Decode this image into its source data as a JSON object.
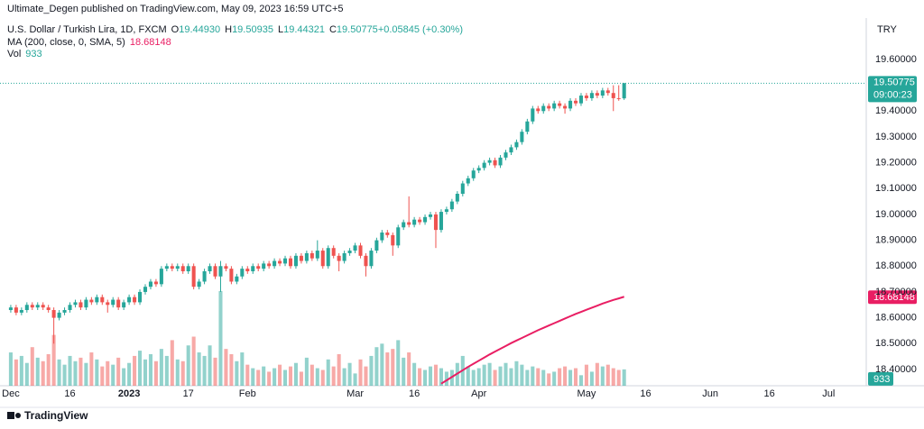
{
  "header": "Ultimate_Degen published on TradingView.com, May 09, 2023 16:59 UTC+5",
  "footer": "TradingView",
  "chart_data": {
    "type": "candlestick",
    "title": "U.S. Dollar / Turkish Lira, 1D, FXCM",
    "ohlc_legend": [
      "O",
      "19.44930",
      "H",
      "19.50935",
      "L",
      "19.44321",
      "C",
      "19.50775",
      "+0.05845 (+0.30%)"
    ],
    "currency": "TRY",
    "up_color": "#26a69a",
    "down_color": "#ef5350",
    "candles": [
      [
        18.63,
        18.65,
        18.62,
        18.64
      ],
      [
        18.64,
        18.65,
        18.61,
        18.62
      ],
      [
        18.62,
        18.64,
        18.61,
        18.63
      ],
      [
        18.63,
        18.66,
        18.62,
        18.65
      ],
      [
        18.65,
        18.66,
        18.63,
        18.64
      ],
      [
        18.64,
        18.66,
        18.63,
        18.65
      ],
      [
        18.65,
        18.66,
        18.63,
        18.64
      ],
      [
        18.64,
        18.65,
        18.62,
        18.63
      ],
      [
        18.63,
        18.64,
        18.5,
        18.6
      ],
      [
        18.6,
        18.63,
        18.59,
        18.62
      ],
      [
        18.62,
        18.64,
        18.61,
        18.63
      ],
      [
        18.63,
        18.66,
        18.62,
        18.65
      ],
      [
        18.65,
        18.67,
        18.64,
        18.66
      ],
      [
        18.66,
        18.67,
        18.63,
        18.64
      ],
      [
        18.64,
        18.68,
        18.63,
        18.67
      ],
      [
        18.67,
        18.68,
        18.65,
        18.66
      ],
      [
        18.66,
        18.69,
        18.65,
        18.68
      ],
      [
        18.68,
        18.69,
        18.65,
        18.66
      ],
      [
        18.66,
        18.67,
        18.62,
        18.65
      ],
      [
        18.65,
        18.68,
        18.64,
        18.67
      ],
      [
        18.67,
        18.68,
        18.63,
        18.64
      ],
      [
        18.64,
        18.67,
        18.63,
        18.66
      ],
      [
        18.66,
        18.69,
        18.65,
        18.68
      ],
      [
        18.68,
        18.69,
        18.65,
        18.66
      ],
      [
        18.66,
        18.71,
        18.65,
        18.7
      ],
      [
        18.7,
        18.73,
        18.69,
        18.72
      ],
      [
        18.72,
        18.75,
        18.71,
        18.74
      ],
      [
        18.74,
        18.75,
        18.72,
        18.73
      ],
      [
        18.73,
        18.8,
        18.72,
        18.79
      ],
      [
        18.79,
        18.81,
        18.78,
        18.8
      ],
      [
        18.8,
        18.81,
        18.78,
        18.79
      ],
      [
        18.79,
        18.81,
        18.78,
        18.8
      ],
      [
        18.8,
        18.81,
        18.77,
        18.78
      ],
      [
        18.78,
        18.81,
        18.77,
        18.8
      ],
      [
        18.8,
        18.81,
        18.71,
        18.72
      ],
      [
        18.72,
        18.75,
        18.71,
        18.74
      ],
      [
        18.74,
        18.79,
        18.73,
        18.78
      ],
      [
        18.78,
        18.81,
        18.77,
        18.8
      ],
      [
        18.8,
        18.81,
        18.75,
        18.76
      ],
      [
        18.76,
        18.82,
        18.7,
        18.8
      ],
      [
        18.8,
        18.81,
        18.78,
        18.79
      ],
      [
        18.79,
        18.8,
        18.73,
        18.74
      ],
      [
        18.74,
        18.77,
        18.73,
        18.76
      ],
      [
        18.76,
        18.8,
        18.75,
        18.79
      ],
      [
        18.79,
        18.8,
        18.77,
        18.78
      ],
      [
        18.78,
        18.81,
        18.77,
        18.8
      ],
      [
        18.8,
        18.81,
        18.78,
        18.79
      ],
      [
        18.79,
        18.82,
        18.78,
        18.81
      ],
      [
        18.81,
        18.82,
        18.79,
        18.8
      ],
      [
        18.8,
        18.83,
        18.79,
        18.82
      ],
      [
        18.82,
        18.83,
        18.8,
        18.81
      ],
      [
        18.81,
        18.84,
        18.8,
        18.83
      ],
      [
        18.83,
        18.84,
        18.79,
        18.8
      ],
      [
        18.8,
        18.85,
        18.79,
        18.84
      ],
      [
        18.84,
        18.85,
        18.81,
        18.82
      ],
      [
        18.82,
        18.86,
        18.81,
        18.85
      ],
      [
        18.85,
        18.86,
        18.82,
        18.83
      ],
      [
        18.83,
        18.9,
        18.82,
        18.86
      ],
      [
        18.86,
        18.87,
        18.79,
        18.8
      ],
      [
        18.8,
        18.88,
        18.79,
        18.87
      ],
      [
        18.87,
        18.88,
        18.83,
        18.84
      ],
      [
        18.84,
        18.85,
        18.78,
        18.82
      ],
      [
        18.82,
        18.86,
        18.81,
        18.85
      ],
      [
        18.85,
        18.87,
        18.84,
        18.86
      ],
      [
        18.86,
        18.89,
        18.85,
        18.88
      ],
      [
        18.88,
        18.89,
        18.83,
        18.84
      ],
      [
        18.84,
        18.85,
        18.76,
        18.8
      ],
      [
        18.8,
        18.87,
        18.79,
        18.86
      ],
      [
        18.86,
        18.91,
        18.85,
        18.9
      ],
      [
        18.9,
        18.94,
        18.89,
        18.93
      ],
      [
        18.93,
        18.94,
        18.91,
        18.92
      ],
      [
        18.92,
        18.93,
        18.84,
        18.88
      ],
      [
        18.88,
        18.96,
        18.87,
        18.95
      ],
      [
        18.95,
        18.98,
        18.94,
        18.97
      ],
      [
        18.97,
        19.07,
        18.95,
        18.96
      ],
      [
        18.96,
        18.99,
        18.95,
        18.98
      ],
      [
        18.98,
        18.99,
        18.96,
        18.97
      ],
      [
        18.97,
        19.0,
        18.96,
        18.99
      ],
      [
        18.99,
        19.01,
        18.98,
        19.0
      ],
      [
        19.0,
        19.01,
        18.87,
        18.94
      ],
      [
        18.94,
        19.02,
        18.93,
        19.01
      ],
      [
        19.01,
        19.03,
        19.0,
        19.02
      ],
      [
        19.02,
        19.06,
        19.01,
        19.05
      ],
      [
        19.05,
        19.09,
        19.04,
        19.08
      ],
      [
        19.08,
        19.13,
        19.07,
        19.12
      ],
      [
        19.12,
        19.15,
        19.11,
        19.14
      ],
      [
        19.14,
        19.18,
        19.13,
        19.17
      ],
      [
        19.17,
        19.19,
        19.16,
        19.18
      ],
      [
        19.18,
        19.21,
        19.17,
        19.2
      ],
      [
        19.2,
        19.22,
        19.19,
        19.21
      ],
      [
        19.21,
        19.22,
        19.18,
        19.19
      ],
      [
        19.19,
        19.23,
        19.18,
        19.22
      ],
      [
        19.22,
        19.25,
        19.21,
        19.24
      ],
      [
        19.24,
        19.27,
        19.23,
        19.26
      ],
      [
        19.26,
        19.29,
        19.25,
        19.28
      ],
      [
        19.28,
        19.33,
        19.27,
        19.32
      ],
      [
        19.32,
        19.37,
        19.31,
        19.36
      ],
      [
        19.36,
        19.42,
        19.35,
        19.41
      ],
      [
        19.41,
        19.42,
        19.39,
        19.4
      ],
      [
        19.4,
        19.43,
        19.39,
        19.42
      ],
      [
        19.42,
        19.43,
        19.4,
        19.41
      ],
      [
        19.41,
        19.44,
        19.4,
        19.43
      ],
      [
        19.43,
        19.44,
        19.41,
        19.42
      ],
      [
        19.42,
        19.43,
        19.39,
        19.41
      ],
      [
        19.41,
        19.45,
        19.4,
        19.44
      ],
      [
        19.44,
        19.45,
        19.42,
        19.43
      ],
      [
        19.43,
        19.47,
        19.42,
        19.46
      ],
      [
        19.46,
        19.47,
        19.44,
        19.45
      ],
      [
        19.45,
        19.48,
        19.44,
        19.47
      ],
      [
        19.47,
        19.48,
        19.45,
        19.46
      ],
      [
        19.46,
        19.49,
        19.45,
        19.48
      ],
      [
        19.48,
        19.49,
        19.46,
        19.47
      ],
      [
        19.47,
        19.5,
        19.4,
        19.45
      ],
      [
        19.45,
        19.5,
        19.44,
        19.4493
      ],
      [
        19.4493,
        19.50935,
        19.44321,
        19.50775
      ]
    ],
    "last_value_label": "19.50775",
    "countdown": "09:00:23",
    "ylim": [
      18.337,
      19.83
    ],
    "yticks": [
      {
        "value": 18.4,
        "label": "18.40000"
      },
      {
        "value": 18.5,
        "label": "18.50000"
      },
      {
        "value": 18.6,
        "label": "18.60000"
      },
      {
        "value": 18.7,
        "label": "18.70000"
      },
      {
        "value": 18.8,
        "label": "18.80000"
      },
      {
        "value": 18.9,
        "label": "18.90000"
      },
      {
        "value": 19.0,
        "label": "19.00000"
      },
      {
        "value": 19.1,
        "label": "19.10000"
      },
      {
        "value": 19.2,
        "label": "19.20000"
      },
      {
        "value": 19.3,
        "label": "19.30000"
      },
      {
        "value": 19.4,
        "label": "19.40000"
      },
      {
        "value": 19.6,
        "label": "19.60000"
      }
    ],
    "xlim": [
      -2,
      159
    ],
    "xticks": [
      {
        "value": 0,
        "label": "Dec"
      },
      {
        "value": 11,
        "label": "16"
      },
      {
        "value": 22,
        "label": "2023"
      },
      {
        "value": 33,
        "label": "17"
      },
      {
        "value": 44,
        "label": "Feb"
      },
      {
        "value": 64,
        "label": "Mar"
      },
      {
        "value": 75,
        "label": "16"
      },
      {
        "value": 87,
        "label": "Apr"
      },
      {
        "value": 107,
        "label": "May"
      },
      {
        "value": 118,
        "label": "16"
      },
      {
        "value": 130,
        "label": "Jun"
      },
      {
        "value": 141,
        "label": "16"
      },
      {
        "value": 152,
        "label": "Jul"
      }
    ],
    "ma": {
      "name": "MA (200, close, 0, SMA, 5)",
      "color": "#e91e63",
      "value_label": "18.68148",
      "values": [
        null,
        null,
        null,
        null,
        null,
        null,
        null,
        null,
        null,
        null,
        null,
        null,
        null,
        null,
        null,
        null,
        null,
        null,
        null,
        null,
        null,
        null,
        null,
        null,
        null,
        null,
        null,
        null,
        null,
        null,
        null,
        null,
        null,
        null,
        null,
        null,
        null,
        null,
        null,
        null,
        null,
        null,
        null,
        null,
        null,
        null,
        null,
        null,
        null,
        null,
        null,
        null,
        null,
        null,
        null,
        null,
        null,
        null,
        null,
        null,
        null,
        null,
        null,
        null,
        null,
        null,
        null,
        null,
        null,
        null,
        null,
        null,
        null,
        null,
        null,
        null,
        null,
        null,
        null,
        null,
        18.345,
        18.358,
        18.371,
        18.384,
        18.397,
        18.41,
        18.422,
        18.434,
        18.446,
        18.458,
        18.469,
        18.48,
        18.491,
        18.502,
        18.512,
        18.522,
        18.532,
        18.542,
        18.552,
        18.561,
        18.57,
        18.579,
        18.588,
        18.597,
        18.606,
        18.615,
        18.623,
        18.631,
        18.639,
        18.647,
        18.655,
        18.662,
        18.669,
        18.675,
        18.68148
      ]
    },
    "volume": {
      "name": "Vol",
      "value_label": "933",
      "vlim": [
        0,
        22000
      ],
      "values": [
        1900,
        1500,
        1700,
        1300,
        2200,
        1600,
        1400,
        1800,
        2900,
        1500,
        1200,
        1700,
        1400,
        1600,
        1300,
        1900,
        1500,
        1100,
        1400,
        1200,
        1600,
        1000,
        1300,
        1700,
        2000,
        1500,
        1800,
        1400,
        2100,
        1700,
        2600,
        1500,
        1400,
        2300,
        2800,
        1900,
        1700,
        2300,
        1600,
        5400,
        2100,
        1800,
        1400,
        1900,
        1200,
        1000,
        900,
        1100,
        800,
        1000,
        1200,
        900,
        1100,
        1300,
        800,
        1600,
        1200,
        1000,
        900,
        1500,
        1100,
        1800,
        1000,
        1300,
        700,
        1500,
        1100,
        1700,
        2200,
        2400,
        1900,
        2100,
        2600,
        1600,
        1900,
        1300,
        1000,
        900,
        1100,
        1200,
        1000,
        800,
        900,
        1300,
        1700,
        1100,
        900,
        1000,
        1200,
        1300,
        900,
        1100,
        1300,
        1000,
        1400,
        1200,
        900,
        1100,
        1000,
        900,
        700,
        800,
        1000,
        1100,
        900,
        1000,
        600,
        1200,
        800,
        1300,
        1100,
        1200,
        1000,
        900,
        933
      ]
    }
  }
}
